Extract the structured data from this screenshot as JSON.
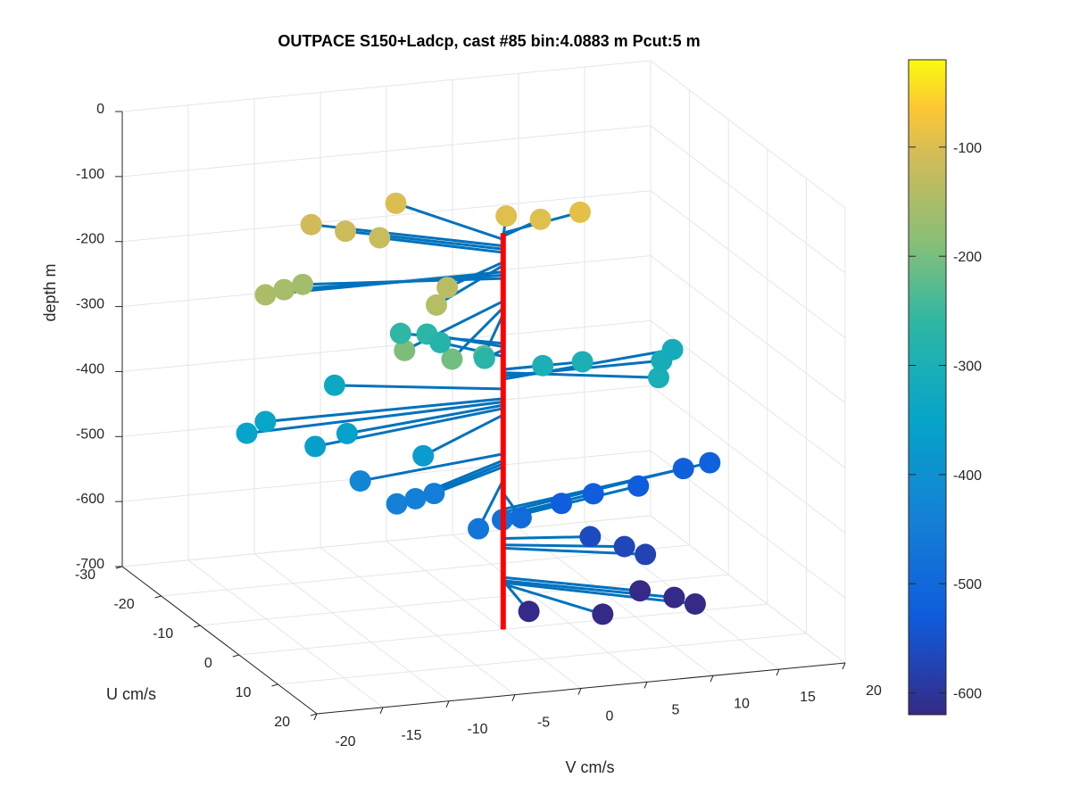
{
  "chart_data": {
    "type": "scatter",
    "subtype": "3d-quiver",
    "title": "OUTPACE S150+Ladcp, cast #85 bin:4.0883 m  Pcut:5 m",
    "xlabel": "V cm/s",
    "ylabel": "U cm/s",
    "zlabel": "depth m",
    "xlim": [
      -20,
      20
    ],
    "ylim": [
      -30,
      20
    ],
    "zlim": [
      -700,
      0
    ],
    "x_ticks": [
      "-20",
      "-15",
      "-10",
      "-5",
      "0",
      "5",
      "10",
      "15",
      "20"
    ],
    "y_ticks": [
      "-30",
      "-20",
      "-10",
      "0",
      "10",
      "20"
    ],
    "z_ticks": [
      "0",
      "-100",
      "-200",
      "-300",
      "-400",
      "-500",
      "-600",
      "-700"
    ],
    "colorbar": {
      "colormap": "parula",
      "range": [
        -620,
        -20
      ],
      "ticks": [
        "-100",
        "-200",
        "-300",
        "-400",
        "-500",
        "-600"
      ]
    },
    "grid": true,
    "profile_color": "#ff0000",
    "arrow_color": "#0072bd",
    "points": [
      {
        "v": -18,
        "u": 0,
        "z": -150
      },
      {
        "v": -16,
        "u": -2,
        "z": -155
      },
      {
        "v": -14,
        "u": -4,
        "z": -160
      },
      {
        "v": -11,
        "u": -12,
        "z": -110
      },
      {
        "v": -9,
        "u": -10,
        "z": -115
      },
      {
        "v": -7,
        "u": -8,
        "z": -120
      },
      {
        "v": -8,
        "u": 10,
        "z": -140
      },
      {
        "v": -6,
        "u": 6,
        "z": -135
      },
      {
        "v": -4,
        "u": -14,
        "z": -100
      },
      {
        "v": 2,
        "u": -6,
        "z": -95
      },
      {
        "v": 4,
        "u": -4,
        "z": -95
      },
      {
        "v": 7,
        "u": -4,
        "z": -90
      },
      {
        "v": -11,
        "u": 12,
        "z": -195
      },
      {
        "v": -8,
        "u": 14,
        "z": -205
      },
      {
        "v": -5,
        "u": 12,
        "z": -215
      },
      {
        "v": -6,
        "u": -6,
        "z": -260
      },
      {
        "v": -4,
        "u": -6,
        "z": -265
      },
      {
        "v": -2,
        "u": 2,
        "z": -270
      },
      {
        "v": -3,
        "u": -6,
        "z": -280
      },
      {
        "v": 3,
        "u": 0,
        "z": -300
      },
      {
        "v": 6,
        "u": 0,
        "z": -300
      },
      {
        "v": 10,
        "u": 6,
        "z": -305
      },
      {
        "v": 12,
        "u": 0,
        "z": -310
      },
      {
        "v": 14,
        "u": -4,
        "z": -315
      },
      {
        "v": -20,
        "u": 2,
        "z": -350
      },
      {
        "v": -18,
        "u": 0,
        "z": -345
      },
      {
        "v": -16,
        "u": 6,
        "z": -360
      },
      {
        "v": -13,
        "u": 4,
        "z": -355
      },
      {
        "v": -11,
        "u": -6,
        "z": -330
      },
      {
        "v": -9,
        "u": 10,
        "z": -370
      },
      {
        "v": -11,
        "u": 10,
        "z": -440
      },
      {
        "v": -9,
        "u": 8,
        "z": -445
      },
      {
        "v": -7,
        "u": 6,
        "z": -450
      },
      {
        "v": -12,
        "u": 4,
        "z": -430
      },
      {
        "v": -6,
        "u": 14,
        "z": -470
      },
      {
        "v": -3,
        "u": 10,
        "z": -480
      },
      {
        "v": -1,
        "u": 8,
        "z": -490
      },
      {
        "v": 5,
        "u": -2,
        "z": -525
      },
      {
        "v": 8,
        "u": -4,
        "z": -525
      },
      {
        "v": 12,
        "u": -6,
        "z": -530
      },
      {
        "v": 16,
        "u": -8,
        "z": -520
      },
      {
        "v": 18,
        "u": -8,
        "z": -515
      },
      {
        "v": 6,
        "u": 2,
        "z": -560
      },
      {
        "v": 8,
        "u": 4,
        "z": -570
      },
      {
        "v": 9,
        "u": 6,
        "z": -575
      },
      {
        "v": 8,
        "u": 8,
        "z": -620
      },
      {
        "v": 10,
        "u": 10,
        "z": -625
      },
      {
        "v": 4,
        "u": 12,
        "z": -630
      },
      {
        "v": -1,
        "u": 10,
        "z": -625
      },
      {
        "v": 11,
        "u": 12,
        "z": -628
      }
    ]
  }
}
